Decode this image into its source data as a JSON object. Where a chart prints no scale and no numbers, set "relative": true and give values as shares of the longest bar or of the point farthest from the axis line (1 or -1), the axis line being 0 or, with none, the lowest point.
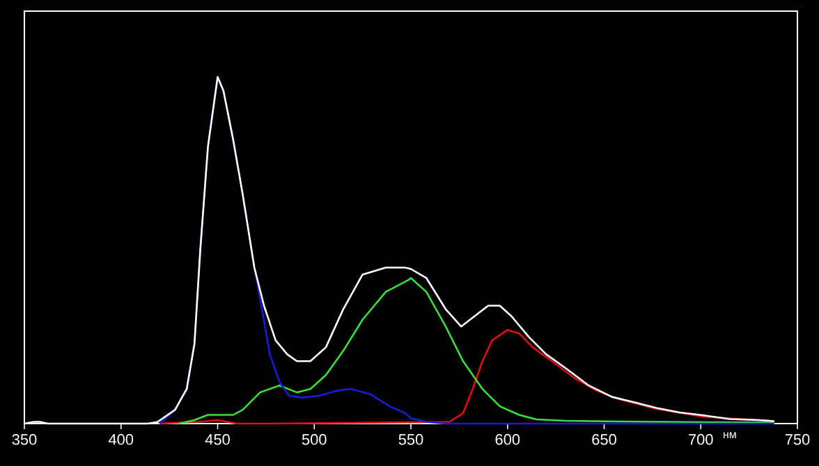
{
  "chart_data": {
    "type": "line",
    "relative": true,
    "xlabel": "нм",
    "xlim": [
      350,
      750
    ],
    "xticks": [
      350,
      400,
      450,
      500,
      550,
      600,
      650,
      700,
      750
    ],
    "grid": false,
    "line_style": "solid",
    "marker": "none",
    "series": [
      {
        "color": "#ffffff",
        "x": [
          350,
          355,
          358,
          362,
          380,
          414,
          419,
          428,
          434,
          438,
          441,
          445,
          450,
          453,
          458,
          463,
          469,
          474,
          480,
          486,
          491,
          498,
          506,
          515,
          525,
          537,
          547,
          550,
          558,
          568,
          576,
          583,
          590,
          596,
          602,
          611,
          620,
          630,
          642,
          654,
          665,
          677,
          689,
          701,
          715,
          730,
          738
        ],
        "values": [
          0,
          0.005,
          0.005,
          0,
          0,
          0,
          0.005,
          0.04,
          0.1,
          0.23,
          0.5,
          0.8,
          1.0,
          0.96,
          0.82,
          0.66,
          0.45,
          0.34,
          0.24,
          0.2,
          0.18,
          0.18,
          0.22,
          0.33,
          0.43,
          0.45,
          0.45,
          0.446,
          0.42,
          0.33,
          0.28,
          0.31,
          0.34,
          0.34,
          0.31,
          0.25,
          0.2,
          0.16,
          0.11,
          0.077,
          0.062,
          0.045,
          0.032,
          0.024,
          0.013,
          0.01,
          0.007
        ]
      },
      {
        "color": "#1c1cd8",
        "x": [
          420,
          428,
          434,
          438,
          441,
          445,
          450,
          453,
          458,
          463,
          469,
          472,
          477,
          482,
          487,
          494,
          502,
          512,
          519,
          529,
          539,
          547,
          550,
          558,
          568,
          600,
          650,
          700,
          738
        ],
        "values": [
          0,
          0.04,
          0.1,
          0.23,
          0.5,
          0.8,
          1.0,
          0.96,
          0.82,
          0.66,
          0.45,
          0.36,
          0.2,
          0.12,
          0.08,
          0.075,
          0.08,
          0.095,
          0.1,
          0.085,
          0.05,
          0.03,
          0.015,
          0.005,
          0,
          0,
          0,
          0,
          0
        ]
      },
      {
        "color": "#3ce03c",
        "x": [
          430,
          438,
          445,
          458,
          463,
          472,
          482,
          491,
          498,
          506,
          515,
          525,
          537,
          549,
          550,
          558,
          568,
          577,
          587,
          596,
          606,
          615,
          630,
          658,
          706,
          738
        ],
        "values": [
          0,
          0.01,
          0.025,
          0.025,
          0.04,
          0.09,
          0.11,
          0.09,
          0.1,
          0.14,
          0.21,
          0.3,
          0.38,
          0.415,
          0.42,
          0.38,
          0.28,
          0.18,
          0.1,
          0.05,
          0.025,
          0.012,
          0.008,
          0.006,
          0.004,
          0.003
        ]
      },
      {
        "color": "#e01010",
        "x": [
          420,
          440,
          450,
          460,
          480,
          570,
          577,
          582,
          587,
          592,
          600,
          606,
          613,
          623,
          635,
          646,
          658,
          677,
          701,
          730,
          738
        ],
        "values": [
          0,
          0.005,
          0.01,
          0,
          0,
          0.005,
          0.03,
          0.1,
          0.18,
          0.24,
          0.27,
          0.26,
          0.22,
          0.18,
          0.13,
          0.095,
          0.07,
          0.042,
          0.02,
          0.01,
          0.007
        ]
      }
    ]
  }
}
